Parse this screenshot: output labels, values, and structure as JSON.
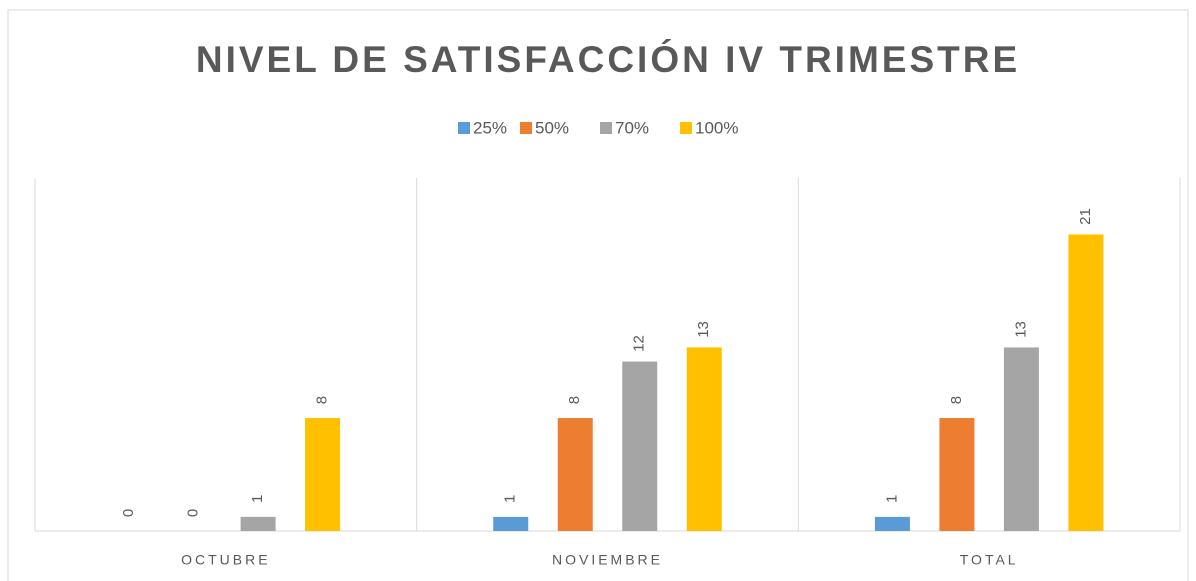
{
  "chart_data": {
    "type": "bar",
    "title": "NIVEL DE SATISFACCIÓN IV TRIMESTRE",
    "categories": [
      "OCTUBRE",
      "NOVIEMBRE",
      "TOTAL"
    ],
    "series": [
      {
        "name": "25%",
        "color": "#5b9bd5",
        "values": [
          0,
          1,
          1
        ]
      },
      {
        "name": "50%",
        "color": "#ed7d31",
        "values": [
          0,
          8,
          8
        ]
      },
      {
        "name": "70%",
        "color": "#a5a5a5",
        "values": [
          1,
          12,
          13
        ]
      },
      {
        "name": "100%",
        "color": "#ffc000",
        "values": [
          8,
          13,
          21
        ]
      }
    ],
    "ylim": [
      0,
      25
    ],
    "legend": "top",
    "data_labels": true
  }
}
